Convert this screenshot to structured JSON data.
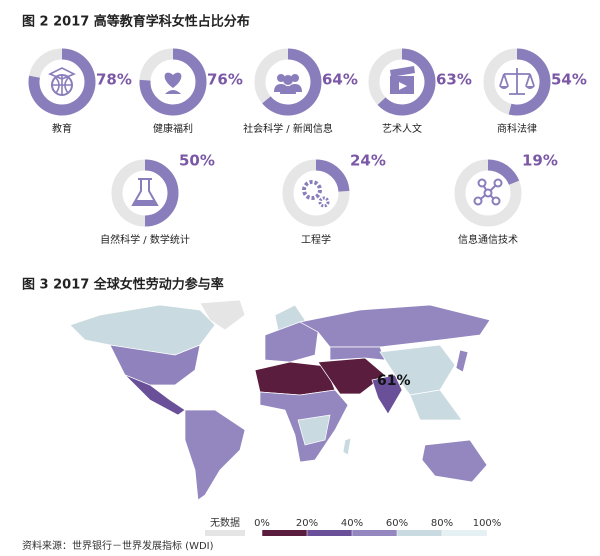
{
  "chart_data": [
    {
      "type": "donut",
      "title": "图 2  2017 高等教育学科女性占比分布",
      "categories": [
        "教育",
        "健康福利",
        "社会科学 / 新闻信息",
        "艺术人文",
        "商科法律",
        "自然科学 / 数学统计",
        "工程学",
        "信息通信技术"
      ],
      "values": [
        78,
        76,
        64,
        63,
        54,
        50,
        24,
        19
      ],
      "value_labels": [
        "78%",
        "76%",
        "64%",
        "63%",
        "54%",
        "50%",
        "24%",
        "19%"
      ],
      "color": "#8a7dbb",
      "track_color": "#e6e6e6",
      "label_color": "#7b58a6"
    },
    {
      "type": "map",
      "title": "图 3  2017 全球女性劳动力参与率",
      "no_data_label": "无数据",
      "no_data_color": "#e5e5e5",
      "xlim": [
        0,
        100
      ],
      "xticks": [
        {
          "value": 0,
          "label": "0%"
        },
        {
          "value": 20,
          "label": "20%"
        },
        {
          "value": 40,
          "label": "40%"
        },
        {
          "value": 60,
          "label": "60%"
        },
        {
          "value": 80,
          "label": "80%"
        },
        {
          "value": 100,
          "label": "100%"
        }
      ],
      "colors": [
        "#5b1d3d",
        "#6a5099",
        "#9487c0",
        "#c9dbe0",
        "#e4f0f1"
      ],
      "highlight": {
        "value": 61,
        "label": "61%"
      },
      "source": "资料来源：世界银行－世界发展指标 (WDI)"
    }
  ]
}
